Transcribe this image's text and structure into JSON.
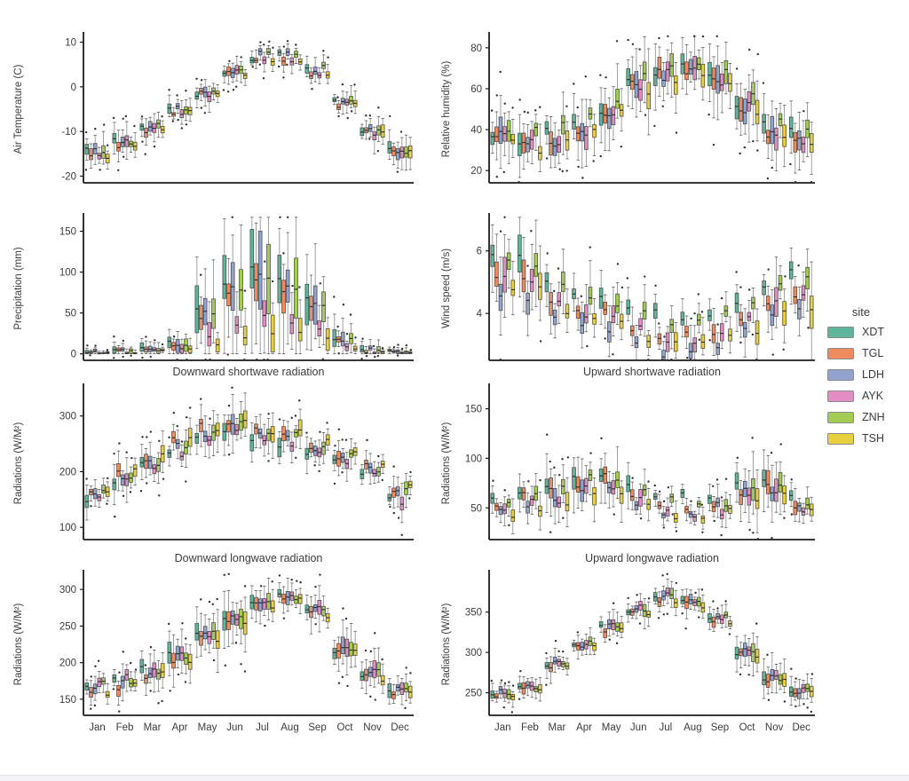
{
  "page": {
    "background": "#ffffff"
  },
  "legend": {
    "title": "site"
  },
  "chart_data": {
    "type": "boxplot-grid",
    "grid": "4 rows x 2 cols, shared month axis, grouped by site",
    "months": [
      "Jan",
      "Feb",
      "Mar",
      "Apr",
      "May",
      "Jun",
      "Jul",
      "Aug",
      "Sep",
      "Oct",
      "Nov",
      "Dec"
    ],
    "sites": [
      {
        "name": "XDT",
        "color": "#5fb69a"
      },
      {
        "name": "TGL",
        "color": "#f08a5f"
      },
      {
        "name": "LDH",
        "color": "#93a3cf"
      },
      {
        "name": "AYK",
        "color": "#e28dc4"
      },
      {
        "name": "ZNH",
        "color": "#a3cc52"
      },
      {
        "name": "TSH",
        "color": "#e9d03f"
      }
    ],
    "style": {
      "box_stroke": "#4f4f4f",
      "median_color": "#303030",
      "whisker_color": "#888888",
      "cap_color": "#5a5a5a",
      "flier_color": "#2f2f2f",
      "axis_color": "#1c1c1c",
      "text_color": "#3c3c3c"
    },
    "charts": [
      {
        "id": "air-temperature",
        "title": "",
        "ylabel": "Air Temperature (C)",
        "ylim": [
          -21.5,
          11.5
        ],
        "yticks": [
          10,
          0,
          -10,
          -20
        ],
        "base": [
          -15,
          -12.5,
          -9,
          -5.5,
          -1.5,
          3.5,
          6.5,
          6.5,
          3.5,
          -3.5,
          -10,
          -14.5
        ],
        "iqr": [
          2.2,
          2.0,
          1.6,
          1.5,
          1.5,
          1.4,
          1.2,
          1.2,
          1.5,
          1.6,
          2.0,
          2.6
        ],
        "site_offsets": [
          0.3,
          -0.4,
          0.5,
          -0.2,
          0.3,
          -0.6
        ],
        "wobble": 1.0,
        "show_months": false,
        "seed": 11
      },
      {
        "id": "relative-humidity",
        "title": "",
        "ylabel": "Relative humidity (%)",
        "ylim": [
          14,
          86
        ],
        "yticks": [
          80,
          60,
          40,
          20
        ],
        "base": [
          37,
          35,
          36,
          42,
          50,
          63,
          68,
          69,
          66,
          52,
          40,
          37
        ],
        "iqr": [
          8,
          8,
          7,
          9,
          10,
          10,
          9,
          9,
          10,
          10,
          9,
          8
        ],
        "site_offsets": [
          1.5,
          -2,
          -1,
          -2,
          4,
          -3
        ],
        "wobble": 3.5,
        "show_months": false,
        "seed": 22
      },
      {
        "id": "precipitation",
        "title": "",
        "ylabel": "Precipitation (mm)",
        "ylim": [
          -8,
          168
        ],
        "yticks": [
          150,
          100,
          50,
          0
        ],
        "base": [
          2,
          3,
          5,
          12,
          45,
          72,
          88,
          78,
          55,
          15,
          4,
          2
        ],
        "iqr": [
          3,
          4,
          6,
          10,
          28,
          42,
          48,
          42,
          32,
          12,
          5,
          3
        ],
        "site_offsets": [
          0,
          0,
          0,
          0,
          0,
          0
        ],
        "site_factors": [
          1.2,
          1.0,
          1.1,
          0.5,
          1.05,
          0.3
        ],
        "wobble": 3,
        "clip_zero": true,
        "show_months": false,
        "seed": 33
      },
      {
        "id": "wind-speed",
        "title": "",
        "ylabel": "Wind speed (m/s)",
        "ylim": [
          2.5,
          7.1
        ],
        "yticks": [
          6,
          4
        ],
        "base": [
          5.2,
          5.2,
          4.5,
          4.3,
          4.0,
          3.6,
          3.4,
          3.4,
          3.6,
          3.9,
          4.5,
          4.7
        ],
        "iqr": [
          0.8,
          0.9,
          0.6,
          0.55,
          0.5,
          0.45,
          0.4,
          0.4,
          0.45,
          0.5,
          0.6,
          0.7
        ],
        "site_offsets": [
          0.5,
          -0.1,
          -0.6,
          -0.2,
          0.35,
          -0.4
        ],
        "wobble": 0.22,
        "show_months": false,
        "seed": 44
      },
      {
        "id": "downward-shortwave",
        "title": "Downward shortwave radiation",
        "ylabel": "Radiations (W/M²)",
        "ylim": [
          78,
          352
        ],
        "yticks": [
          300,
          200,
          100
        ],
        "base": [
          160,
          190,
          215,
          245,
          270,
          285,
          265,
          258,
          242,
          222,
          200,
          162
        ],
        "iqr": [
          16,
          18,
          18,
          20,
          22,
          25,
          22,
          22,
          20,
          18,
          16,
          15
        ],
        "site_offsets": [
          -5,
          8,
          0,
          -12,
          5,
          10
        ],
        "wobble": 9,
        "show_months": false,
        "seed": 55
      },
      {
        "id": "upward-shortwave",
        "title": "Upward shortwave radiation",
        "ylabel": "Radiations (W/M²)",
        "ylim": [
          18,
          172
        ],
        "yticks": [
          150,
          100,
          50
        ],
        "base": [
          48,
          55,
          62,
          70,
          74,
          58,
          48,
          46,
          50,
          64,
          68,
          50
        ],
        "iqr": [
          9,
          13,
          16,
          18,
          16,
          12,
          8,
          8,
          10,
          18,
          20,
          10
        ],
        "site_offsets": [
          14,
          5,
          0,
          -2,
          8,
          -5
        ],
        "wobble": 6,
        "show_months": false,
        "seed": 66
      },
      {
        "id": "downward-longwave",
        "title": "Downward longwave radiation",
        "ylabel": "Radiations (W/M²)",
        "ylim": [
          128,
          322
        ],
        "yticks": [
          300,
          250,
          200,
          150
        ],
        "base": [
          165,
          172,
          187,
          207,
          235,
          257,
          281,
          288,
          268,
          215,
          181,
          164
        ],
        "iqr": [
          11,
          12,
          14,
          18,
          22,
          20,
          15,
          14,
          16,
          18,
          14,
          12
        ],
        "site_offsets": [
          2,
          -3,
          3,
          6,
          4,
          -4
        ],
        "wobble": 6,
        "show_months": true,
        "seed": 77
      },
      {
        "id": "upward-longwave",
        "title": "Upward longwave radiation",
        "ylabel": "Radiations (W/M²)",
        "ylim": [
          222,
          398
        ],
        "yticks": [
          350,
          300,
          250
        ],
        "base": [
          250,
          257,
          284,
          308,
          331,
          352,
          367,
          361,
          341,
          300,
          266,
          250
        ],
        "iqr": [
          8,
          9,
          10,
          10,
          10,
          10,
          9,
          9,
          10,
          14,
          16,
          9
        ],
        "site_offsets": [
          1,
          -2,
          2,
          3,
          2,
          -2
        ],
        "wobble": 4,
        "show_months": true,
        "seed": 88
      }
    ]
  }
}
